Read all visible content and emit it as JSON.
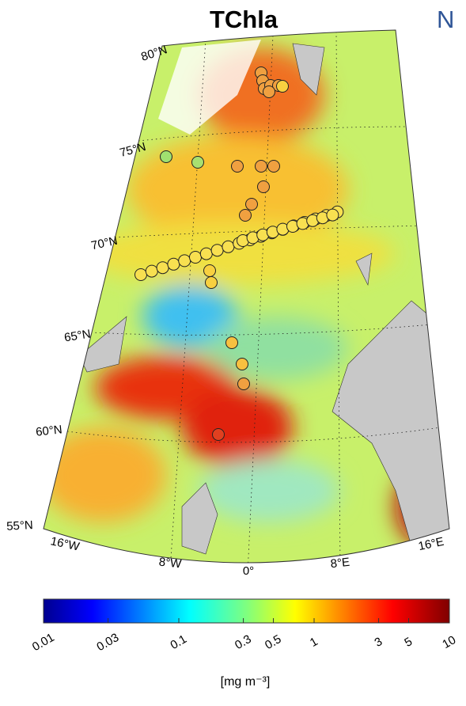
{
  "title": "TChla",
  "corner_letter": "N",
  "latitude_labels": [
    "80°N",
    "75°N",
    "70°N",
    "65°N",
    "60°N",
    "55°N"
  ],
  "longitude_labels": [
    "16°W",
    "8°W",
    "0°",
    "8°E",
    "16°E"
  ],
  "colorbar": {
    "log": true,
    "lim": [
      0.01,
      10
    ],
    "ticks": [
      0.01,
      0.03,
      0.1,
      0.3,
      0.5,
      1,
      3,
      5,
      10
    ],
    "label": "[mg m⁻³]"
  }
}
